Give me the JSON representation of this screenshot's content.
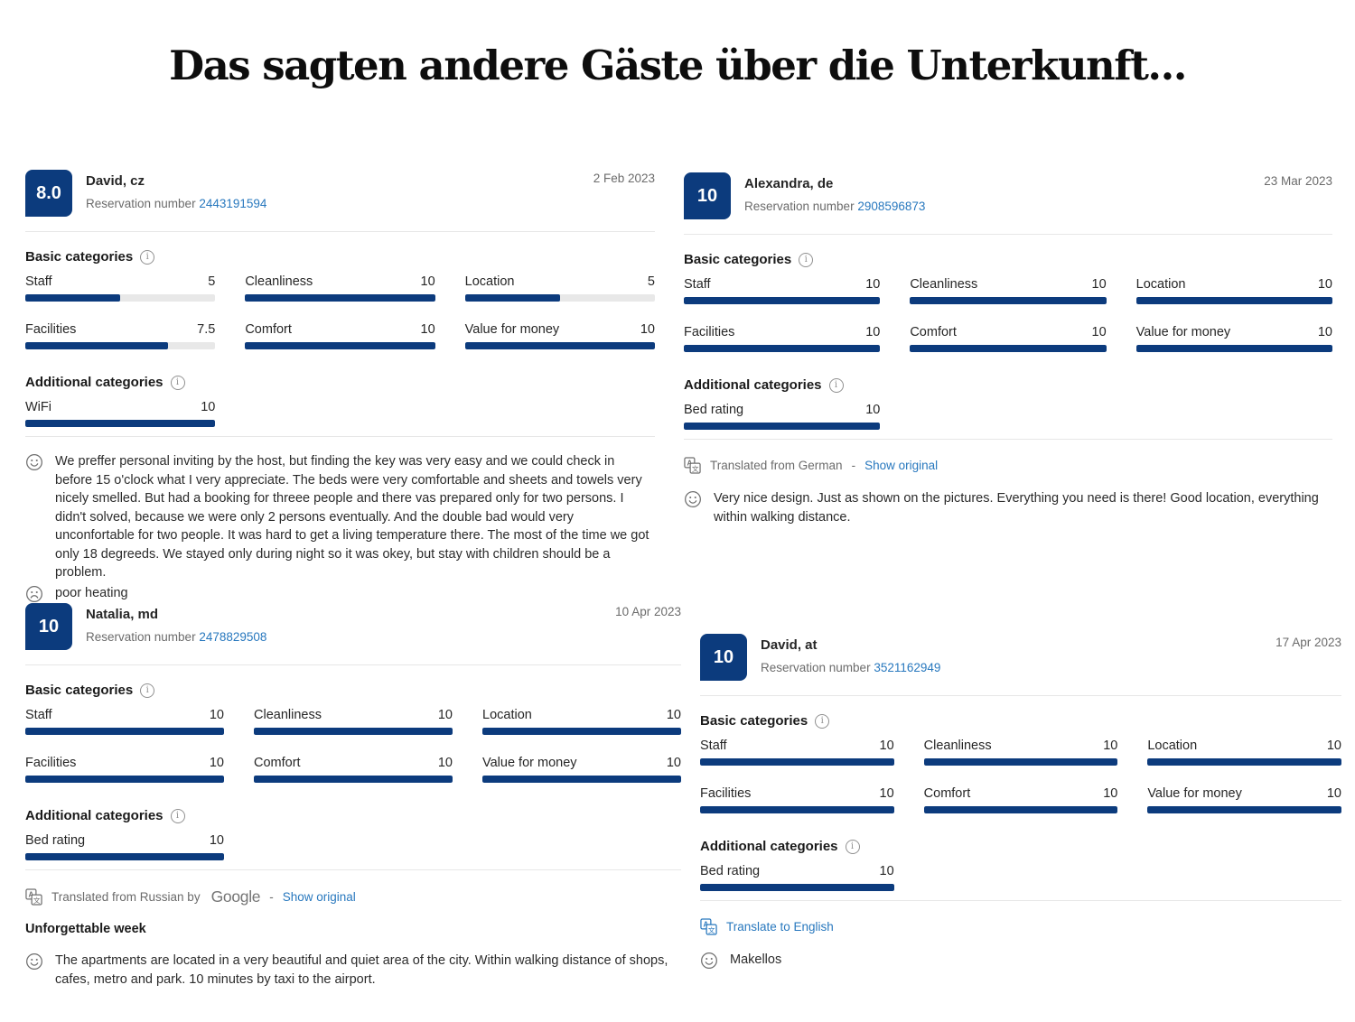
{
  "page": {
    "title": "Das sagten andere Gäste über die Unterkunft..."
  },
  "labels": {
    "reservation_number": "Reservation number",
    "basic_categories": "Basic categories",
    "additional_categories": "Additional categories"
  },
  "colors": {
    "accent_navy": "#0c3b7d",
    "link_blue": "#2878be",
    "text_dark": "#2b2b2b",
    "text_gray": "#6b6b6b",
    "bar_track": "#e8e8e8"
  },
  "reviews": [
    {
      "score": "8.0",
      "name": "David, cz",
      "reservation_number": "2443191594",
      "date": "2 Feb 2023",
      "basic": [
        {
          "label": "Staff",
          "value": "5",
          "pct": 50
        },
        {
          "label": "Cleanliness",
          "value": "10",
          "pct": 100
        },
        {
          "label": "Location",
          "value": "5",
          "pct": 50
        },
        {
          "label": "Facilities",
          "value": "7.5",
          "pct": 75
        },
        {
          "label": "Comfort",
          "value": "10",
          "pct": 100
        },
        {
          "label": "Value for money",
          "value": "10",
          "pct": 100
        }
      ],
      "additional": [
        {
          "label": "WiFi",
          "value": "10",
          "pct": 100
        }
      ],
      "translated": null,
      "review_title": null,
      "pros": "We preffer personal inviting by the host, but finding the key was very easy and we could check in before 15 o'clock what I very appreciate. The beds were very comfortable and sheets and towels very nicely smelled. But had a booking for threee people and there vas prepared only for two persons. I didn't solved, because we were only 2 persons eventually. And the double bad would very unconfortable for two people. It was hard to get a living temperature there. The most of the time we got only 18 degreeds. We stayed only during night so it was okey, but stay with children should be a problem.",
      "cons": "poor heating"
    },
    {
      "score": "10",
      "name": "Alexandra, de",
      "reservation_number": "2908596873",
      "date": "23 Mar 2023",
      "basic": [
        {
          "label": "Staff",
          "value": "10",
          "pct": 100
        },
        {
          "label": "Cleanliness",
          "value": "10",
          "pct": 100
        },
        {
          "label": "Location",
          "value": "10",
          "pct": 100
        },
        {
          "label": "Facilities",
          "value": "10",
          "pct": 100
        },
        {
          "label": "Comfort",
          "value": "10",
          "pct": 100
        },
        {
          "label": "Value for money",
          "value": "10",
          "pct": 100
        }
      ],
      "additional": [
        {
          "label": "Bed rating",
          "value": "10",
          "pct": 100
        }
      ],
      "translated": {
        "style": "gray",
        "prefix": "Translated from German",
        "separator": "-",
        "link": "Show original"
      },
      "review_title": null,
      "pros": "Very nice design. Just as shown on the pictures. Everything you need is there! Good location, everything within walking distance.",
      "cons": null
    },
    {
      "score": "10",
      "name": "Natalia, md",
      "reservation_number": "2478829508",
      "date": "10 Apr 2023",
      "basic": [
        {
          "label": "Staff",
          "value": "10",
          "pct": 100
        },
        {
          "label": "Cleanliness",
          "value": "10",
          "pct": 100
        },
        {
          "label": "Location",
          "value": "10",
          "pct": 100
        },
        {
          "label": "Facilities",
          "value": "10",
          "pct": 100
        },
        {
          "label": "Comfort",
          "value": "10",
          "pct": 100
        },
        {
          "label": "Value for money",
          "value": "10",
          "pct": 100
        }
      ],
      "additional": [
        {
          "label": "Bed rating",
          "value": "10",
          "pct": 100
        }
      ],
      "translated": {
        "style": "gray",
        "prefix": "Translated from Russian by",
        "brand": "Google",
        "separator": "-",
        "link": "Show original"
      },
      "review_title": "Unforgettable week",
      "pros": "The apartments are located in a very beautiful and quiet area of the city. Within walking distance of shops, cafes, metro and park. 10 minutes by taxi to the airport.",
      "cons": null
    },
    {
      "score": "10",
      "name": "David, at",
      "reservation_number": "3521162949",
      "date": "17 Apr 2023",
      "basic": [
        {
          "label": "Staff",
          "value": "10",
          "pct": 100
        },
        {
          "label": "Cleanliness",
          "value": "10",
          "pct": 100
        },
        {
          "label": "Location",
          "value": "10",
          "pct": 100
        },
        {
          "label": "Facilities",
          "value": "10",
          "pct": 100
        },
        {
          "label": "Comfort",
          "value": "10",
          "pct": 100
        },
        {
          "label": "Value for money",
          "value": "10",
          "pct": 100
        }
      ],
      "additional": [
        {
          "label": "Bed rating",
          "value": "10",
          "pct": 100
        }
      ],
      "translated": {
        "style": "blue",
        "link": "Translate to English"
      },
      "review_title": null,
      "pros": "Makellos",
      "cons": null
    }
  ]
}
